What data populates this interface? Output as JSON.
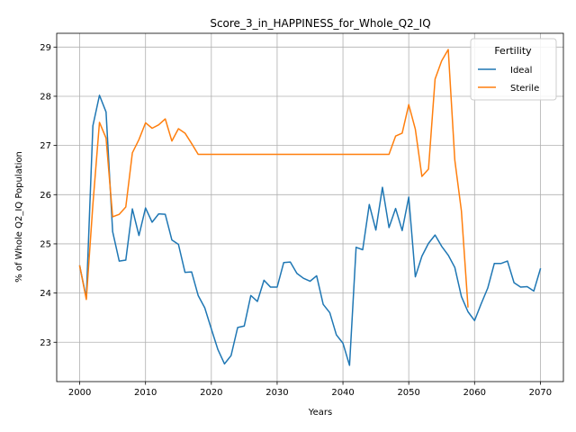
{
  "chart_data": {
    "type": "line",
    "title": "Score_3_in_HAPPINESS_for_Whole_Q2_IQ",
    "xlabel": "Years",
    "ylabel": "% of Whole Q2_IQ Population",
    "xlim": [
      1996.5,
      2073.5
    ],
    "ylim": [
      22.2,
      29.28
    ],
    "xticks": [
      2000,
      2010,
      2020,
      2030,
      2040,
      2050,
      2060,
      2070
    ],
    "yticks": [
      23,
      24,
      25,
      26,
      27,
      28,
      29
    ],
    "grid": true,
    "legend": {
      "title": "Fertility",
      "position": "top-right"
    },
    "series": [
      {
        "name": "Ideal",
        "color": "#1f77b4",
        "x": [
          2000,
          2001,
          2002,
          2003,
          2004,
          2005,
          2006,
          2007,
          2008,
          2009,
          2010,
          2011,
          2012,
          2013,
          2014,
          2015,
          2016,
          2017,
          2018,
          2019,
          2020,
          2021,
          2022,
          2023,
          2024,
          2025,
          2026,
          2027,
          2028,
          2029,
          2030,
          2031,
          2032,
          2033,
          2034,
          2035,
          2036,
          2037,
          2038,
          2039,
          2040,
          2041,
          2042,
          2043,
          2044,
          2045,
          2046,
          2047,
          2048,
          2049,
          2050,
          2051,
          2052,
          2053,
          2054,
          2055,
          2056,
          2057,
          2058,
          2059,
          2060,
          2061,
          2062,
          2063,
          2064,
          2065,
          2066,
          2067,
          2068,
          2069,
          2070
        ],
        "values": [
          24.55,
          23.9,
          27.4,
          28.02,
          27.68,
          25.25,
          24.65,
          24.67,
          25.71,
          25.17,
          25.73,
          25.44,
          25.61,
          25.6,
          25.08,
          24.99,
          24.42,
          24.43,
          23.95,
          23.7,
          23.27,
          22.85,
          22.56,
          22.73,
          23.3,
          23.33,
          23.95,
          23.83,
          24.26,
          24.12,
          24.12,
          24.62,
          24.63,
          24.4,
          24.3,
          24.24,
          24.35,
          23.77,
          23.6,
          23.15,
          22.98,
          22.53,
          24.93,
          24.88,
          25.8,
          25.28,
          26.15,
          25.33,
          25.72,
          25.27,
          25.95,
          24.33,
          24.75,
          25.01,
          25.18,
          24.95,
          24.77,
          24.52,
          23.93,
          23.62,
          23.44,
          23.78,
          24.1,
          24.6,
          24.6,
          24.65,
          24.21,
          24.12,
          24.13,
          24.04,
          24.49
        ]
      },
      {
        "name": "Sterile",
        "color": "#ff7f0e",
        "x": [
          2000,
          2001,
          2002,
          2003,
          2004,
          2005,
          2006,
          2007,
          2008,
          2009,
          2010,
          2011,
          2012,
          2013,
          2014,
          2015,
          2016,
          2017,
          2018,
          2019,
          2020,
          2021,
          2022,
          2023,
          2024,
          2025,
          2026,
          2027,
          2028,
          2029,
          2030,
          2031,
          2032,
          2033,
          2034,
          2035,
          2036,
          2037,
          2038,
          2039,
          2040,
          2041,
          2042,
          2043,
          2044,
          2045,
          2046,
          2047,
          2048,
          2049,
          2050,
          2051,
          2052,
          2053,
          2054,
          2055,
          2056,
          2057,
          2058,
          2059
        ],
        "values": [
          24.55,
          23.87,
          25.8,
          27.47,
          27.15,
          25.55,
          25.6,
          25.75,
          26.85,
          27.12,
          27.46,
          27.35,
          27.42,
          27.54,
          27.09,
          27.34,
          27.25,
          27.04,
          26.82,
          26.82,
          26.82,
          26.82,
          26.82,
          26.82,
          26.82,
          26.82,
          26.82,
          26.82,
          26.82,
          26.82,
          26.82,
          26.82,
          26.82,
          26.82,
          26.82,
          26.82,
          26.82,
          26.82,
          26.82,
          26.82,
          26.82,
          26.82,
          26.82,
          26.82,
          26.82,
          26.82,
          26.82,
          26.82,
          27.19,
          27.25,
          27.83,
          27.33,
          26.37,
          26.52,
          28.35,
          28.72,
          28.95,
          26.7,
          25.67,
          23.72
        ]
      }
    ]
  }
}
